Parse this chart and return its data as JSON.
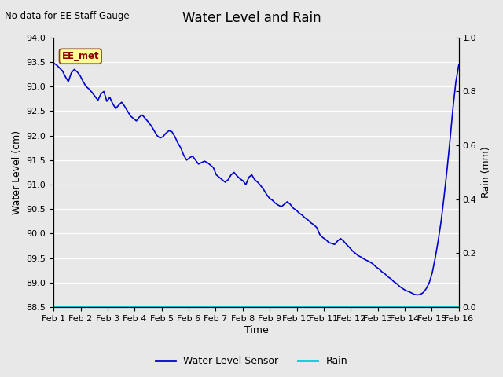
{
  "title": "Water Level and Rain",
  "subtitle": "No data for EE Staff Gauge",
  "xlabel": "Time",
  "ylabel_left": "Water Level (cm)",
  "ylabel_right": "Rain (mm)",
  "ylim_left": [
    88.5,
    94.0
  ],
  "ylim_right": [
    0.0,
    1.0
  ],
  "water_level_color": "#0000cc",
  "rain_color": "#00ccdd",
  "background_color": "#e8e8e8",
  "plot_bg_color": "#e8e8e8",
  "legend_label_water": "Water Level Sensor",
  "legend_label_rain": "Rain",
  "ee_met_label": "EE_met",
  "ee_met_text_color": "#8b0000",
  "ee_met_box_color": "#ffff99",
  "x_tick_labels": [
    "Feb 1",
    "Feb 2",
    "Feb 3",
    "Feb 4",
    "Feb 5",
    "Feb 6",
    "Feb 7",
    "Feb 8",
    "Feb 9",
    "Feb 10",
    "Feb 11",
    "Feb 12",
    "Feb 13",
    "Feb 14",
    "Feb 15",
    "Feb 16"
  ],
  "water_level_data": [
    93.48,
    93.44,
    93.38,
    93.32,
    93.2,
    93.1,
    93.28,
    93.35,
    93.3,
    93.22,
    93.1,
    93.0,
    92.95,
    92.88,
    92.8,
    92.72,
    92.85,
    92.9,
    92.7,
    92.78,
    92.65,
    92.55,
    92.62,
    92.68,
    92.6,
    92.5,
    92.4,
    92.35,
    92.3,
    92.38,
    92.42,
    92.35,
    92.28,
    92.2,
    92.1,
    92.0,
    91.95,
    91.98,
    92.05,
    92.1,
    92.08,
    91.98,
    91.85,
    91.75,
    91.6,
    91.5,
    91.55,
    91.58,
    91.5,
    91.42,
    91.45,
    91.48,
    91.45,
    91.4,
    91.35,
    91.2,
    91.15,
    91.1,
    91.05,
    91.1,
    91.2,
    91.25,
    91.18,
    91.12,
    91.08,
    91.0,
    91.15,
    91.2,
    91.1,
    91.05,
    90.98,
    90.9,
    90.8,
    90.72,
    90.68,
    90.62,
    90.58,
    90.55,
    90.6,
    90.65,
    90.6,
    90.52,
    90.48,
    90.42,
    90.38,
    90.32,
    90.28,
    90.22,
    90.18,
    90.12,
    89.98,
    89.92,
    89.88,
    89.82,
    89.8,
    89.78,
    89.85,
    89.9,
    89.85,
    89.78,
    89.72,
    89.65,
    89.6,
    89.55,
    89.52,
    89.48,
    89.45,
    89.42,
    89.38,
    89.32,
    89.28,
    89.22,
    89.18,
    89.12,
    89.08,
    89.02,
    88.98,
    88.92,
    88.88,
    88.84,
    88.82,
    88.79,
    88.76,
    88.75,
    88.76,
    88.8,
    88.88,
    89.0,
    89.2,
    89.5,
    89.85,
    90.25,
    90.75,
    91.3,
    91.9,
    92.55,
    93.1,
    93.45
  ],
  "y_ticks_left": [
    88.5,
    89.0,
    89.5,
    90.0,
    90.5,
    91.0,
    91.5,
    92.0,
    92.5,
    93.0,
    93.5,
    94.0
  ],
  "y_ticks_right": [
    0.0,
    0.2,
    0.4,
    0.6,
    0.8,
    1.0
  ]
}
